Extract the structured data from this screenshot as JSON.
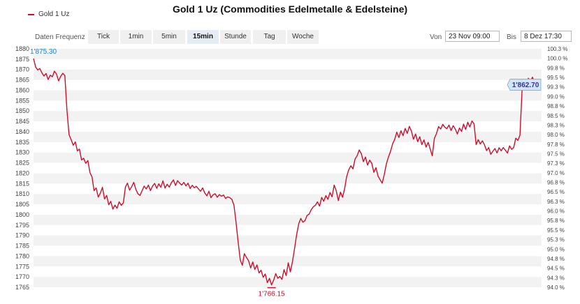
{
  "title": "Gold 1 Uz (Commodities Edelmetalle & Edelsteine)",
  "legend": {
    "label": "Gold 1 Uz",
    "color": "#c8102e"
  },
  "toolbar": {
    "frequency_label": "Daten Frequenz",
    "frequency_options": [
      "Tick",
      "1min",
      "5min",
      "15min",
      "Stunde",
      "Tag",
      "Woche"
    ],
    "selected_frequency": "15min",
    "from_label": "Von",
    "from_value": "23 Nov 09:00",
    "to_label": "Bis",
    "to_value": "8 Dez 17:30"
  },
  "chart_data": {
    "type": "line",
    "series": [
      {
        "name": "Gold 1 Uz",
        "color": "#c8102e"
      }
    ],
    "y_left": {
      "ticks": [
        "1880",
        "1875",
        "1870",
        "1865",
        "1860",
        "1855",
        "1850",
        "1845",
        "1840",
        "1835",
        "1830",
        "1825",
        "1820",
        "1815",
        "1810",
        "1805",
        "1800",
        "1795",
        "1790",
        "1785",
        "1780",
        "1775",
        "1770",
        "1765"
      ],
      "ylim": [
        1765,
        1880
      ]
    },
    "y_right": {
      "ticks": [
        "100.3 %",
        "100.0 %",
        "99.8 %",
        "99.5 %",
        "99.3 %",
        "99.0 %",
        "98.8 %",
        "98.5 %",
        "98.3 %",
        "98.0 %",
        "97.8 %",
        "97.5 %",
        "97.3 %",
        "97.0 %",
        "96.8 %",
        "96.5 %",
        "96.3 %",
        "96.0 %",
        "95.8 %",
        "95.5 %",
        "95.3 %",
        "95.0 %",
        "94.8 %",
        "94.5 %",
        "94.3 %",
        "94.0 %"
      ]
    },
    "grid": true,
    "annotations": {
      "start_label": "1'875.30",
      "min_label": "1'766.15",
      "last_label": "1'862.70"
    },
    "values": [
      1875.3,
      1871.2,
      1869.8,
      1870.5,
      1868.4,
      1866.9,
      1868.1,
      1865.2,
      1867.3,
      1866.5,
      1869.2,
      1867.8,
      1864.5,
      1866.7,
      1868.2,
      1867.1,
      1850.4,
      1838.6,
      1836.2,
      1833.5,
      1835.1,
      1830.8,
      1831.6,
      1826.4,
      1827.2,
      1824.8,
      1826.1,
      1820.3,
      1818.2,
      1811.6,
      1812.9,
      1808.5,
      1810.4,
      1813.2,
      1807.6,
      1809.3,
      1804.8,
      1806.4,
      1802.7,
      1804.6,
      1803.1,
      1806.2,
      1804.5,
      1805.7,
      1813.4,
      1815.2,
      1811.8,
      1813.5,
      1815.6,
      1812.2,
      1810.1,
      1809.3,
      1811.6,
      1813.8,
      1812.4,
      1814.3,
      1811.6,
      1813.8,
      1815.1,
      1812.7,
      1814.9,
      1813.2,
      1816.3,
      1812.8,
      1814.7,
      1813.3,
      1815.4,
      1816.8,
      1814.1,
      1816.4,
      1815.2,
      1814.3,
      1815.6,
      1813.9,
      1815.2,
      1812.6,
      1814.2,
      1813.0,
      1813.7,
      1812.4,
      1811.3,
      1812.9,
      1810.5,
      1809.1,
      1811.3,
      1808.2,
      1809.6,
      1810.1,
      1808.4,
      1809.7,
      1808.9,
      1809.5,
      1807.8,
      1808.6,
      1808.2,
      1807.4,
      1804.6,
      1796.2,
      1786.8,
      1778.2,
      1775.6,
      1781.2,
      1779.4,
      1777.8,
      1774.3,
      1777.2,
      1773.6,
      1775.8,
      1771.9,
      1773.2,
      1769.8,
      1771.4,
      1767.2,
      1769.3,
      1766.15,
      1768.4,
      1771.6,
      1769.3,
      1770.2,
      1768.8,
      1773.5,
      1770.6,
      1776.8,
      1772.4,
      1777.3,
      1783.6,
      1790.2,
      1795.5,
      1798.2,
      1796.4,
      1797.1,
      1799.6,
      1800.3,
      1802.4,
      1803.8,
      1804.5,
      1806.2,
      1804.1,
      1808.3,
      1806.5,
      1809.2,
      1807.4,
      1810.7,
      1808.6,
      1814.3,
      1811.5,
      1806.8,
      1810.9,
      1808.4,
      1812.6,
      1818.4,
      1821.7,
      1823.6,
      1822.1,
      1826.8,
      1828.5,
      1831.2,
      1829.4,
      1825.6,
      1827.8,
      1823.9,
      1826.3,
      1824.8,
      1820.4,
      1822.7,
      1818.6,
      1816.9,
      1815.2,
      1819.3,
      1824.5,
      1827.8,
      1830.6,
      1834.2,
      1836.4,
      1839.8,
      1837.2,
      1840.5,
      1838.1,
      1841.6,
      1839.2,
      1842.6,
      1840.3,
      1836.4,
      1838.9,
      1835.2,
      1837.6,
      1833.8,
      1836.1,
      1832.6,
      1834.9,
      1831.7,
      1828.4,
      1836.8,
      1839.1,
      1842.5,
      1841.3,
      1843.6,
      1842.2,
      1841.5,
      1843.2,
      1840.6,
      1842.9,
      1841.3,
      1838.9,
      1841.8,
      1840.2,
      1843.7,
      1841.1,
      1844.6,
      1842.3,
      1845.2,
      1843.8,
      1833.8,
      1836.2,
      1834.1,
      1835.6,
      1833.7,
      1830.9,
      1832.4,
      1829.1,
      1830.6,
      1831.9,
      1829.8,
      1832.3,
      1830.8,
      1832.4,
      1831.1,
      1829.7,
      1833.2,
      1831.5,
      1832.4,
      1836.9,
      1835.8,
      1838.4,
      1860.2,
      1864.5,
      1862.1,
      1865.8,
      1864.2,
      1866.3,
      1863.8,
      1864.9,
      1862.7
    ]
  }
}
